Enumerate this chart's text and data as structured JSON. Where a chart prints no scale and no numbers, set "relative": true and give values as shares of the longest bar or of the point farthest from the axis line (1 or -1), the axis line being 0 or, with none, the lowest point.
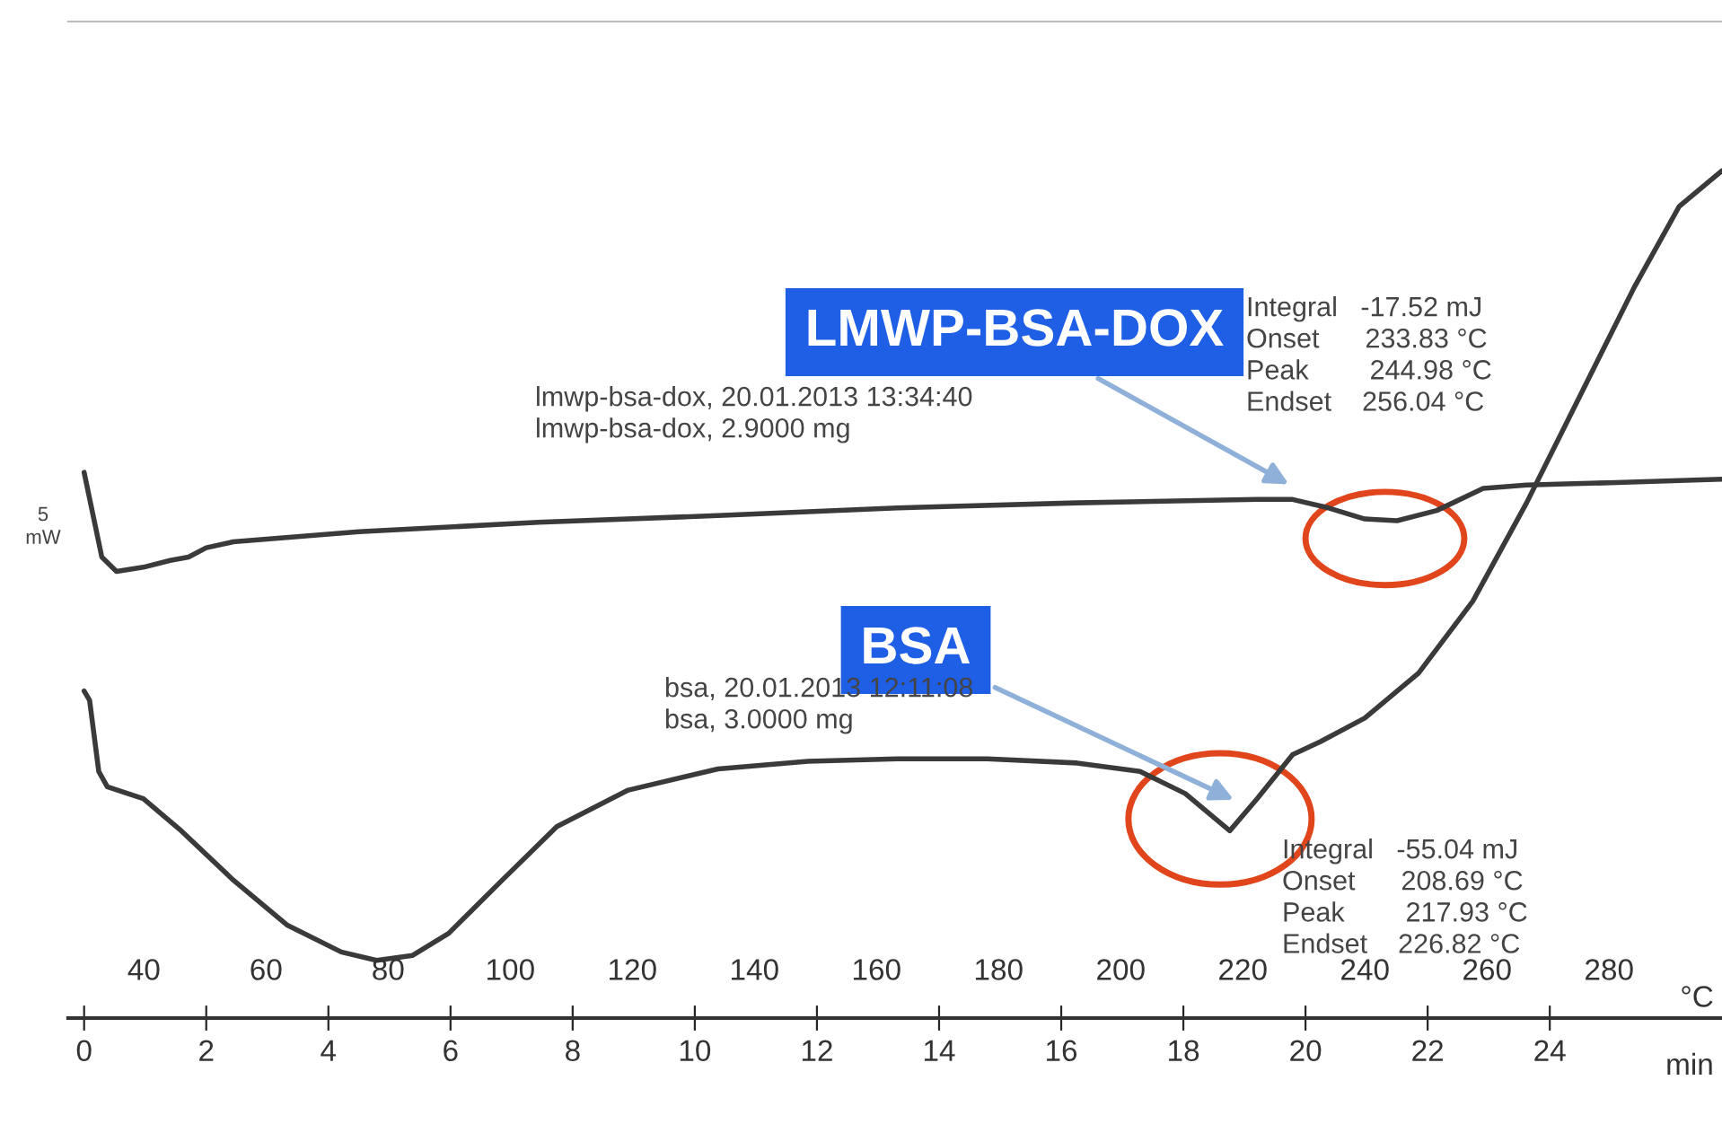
{
  "chart_data": {
    "type": "line",
    "relative": true,
    "xlabel": "min",
    "x2label": "°C",
    "xlim": [
      -0.26,
      26.82
    ],
    "xticks": [
      0,
      2,
      4,
      6,
      8,
      10,
      12,
      14,
      16,
      18,
      20,
      22,
      24
    ],
    "x2lim": [
      27.6,
      298.5
    ],
    "x2ticks": [
      40,
      60,
      80,
      100,
      120,
      140,
      160,
      180,
      200,
      220,
      240,
      260,
      280
    ],
    "legend": false,
    "grid": false,
    "series": [
      {
        "name": "LMWP-BSA-DOX",
        "color": "#3a3a3a",
        "x": [
          0.0,
          0.29,
          0.53,
          0.97,
          1.41,
          1.71,
          2.0,
          2.44,
          4.5,
          7.44,
          10.38,
          13.32,
          16.26,
          19.21,
          19.79,
          20.38,
          20.97,
          21.5,
          22.15,
          22.91,
          23.62,
          25.09,
          26.82
        ],
        "values": [
          0.644,
          0.544,
          0.527,
          0.532,
          0.54,
          0.544,
          0.555,
          0.562,
          0.574,
          0.585,
          0.593,
          0.602,
          0.608,
          0.612,
          0.612,
          0.602,
          0.589,
          0.587,
          0.599,
          0.625,
          0.629,
          0.632,
          0.636
        ]
      },
      {
        "name": "BSA",
        "color": "#3a3a3a",
        "x": [
          0.0,
          0.09,
          0.24,
          0.38,
          0.97,
          1.56,
          2.44,
          3.32,
          4.21,
          4.79,
          5.38,
          5.97,
          6.85,
          7.74,
          8.91,
          10.38,
          11.85,
          13.32,
          14.79,
          16.26,
          17.29,
          18.03,
          18.76,
          19.21,
          19.79,
          20.24,
          20.97,
          21.85,
          22.74,
          23.62,
          24.5,
          25.38,
          26.12,
          26.82
        ],
        "values": [
          0.386,
          0.375,
          0.291,
          0.273,
          0.259,
          0.223,
          0.163,
          0.11,
          0.078,
          0.068,
          0.074,
          0.1,
          0.163,
          0.226,
          0.269,
          0.294,
          0.303,
          0.306,
          0.306,
          0.301,
          0.291,
          0.265,
          0.221,
          0.259,
          0.311,
          0.326,
          0.354,
          0.407,
          0.492,
          0.608,
          0.735,
          0.862,
          0.958,
          1.0
        ]
      }
    ],
    "annotations": [
      "lmwp-bsa-dox, 20.01.2013 13:34:40\nlmwp-bsa-dox, 2.9000 mg",
      "Integral   -17.52 mJ\nOnset      233.83 °C\nPeak        244.98 °C\nEndset    256.04 °C",
      "bsa, 20.01.2013 12:11:08\nbsa, 3.0000 mg",
      "Integral   -55.04 mJ\nOnset      208.69 °C\nPeak        217.93 °C\nEndset    226.82 °C",
      "5\nmW"
    ]
  }
}
